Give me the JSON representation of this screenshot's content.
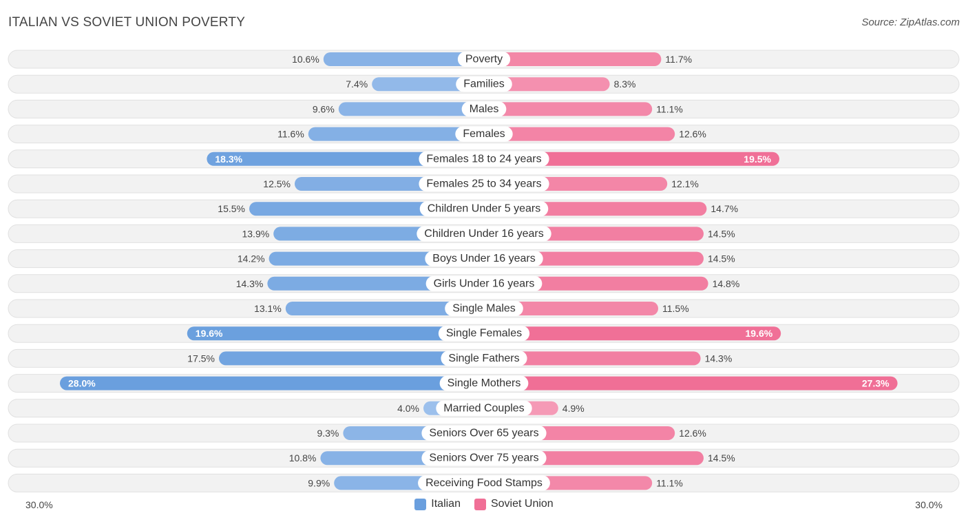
{
  "header": {
    "title": "ITALIAN VS SOVIET UNION POVERTY",
    "source": "Source: ZipAtlas.com"
  },
  "colors": {
    "italian": "#6a9fde",
    "italian_light": "#a9c8ef",
    "soviet": "#f06f96",
    "soviet_light": "#f7a8c0"
  },
  "axis": {
    "left_label": "30.0%",
    "right_label": "30.0%"
  },
  "legend": {
    "italian": "Italian",
    "soviet": "Soviet Union"
  },
  "chart_data": {
    "type": "bar",
    "orientation": "horizontal-diverging",
    "title": "ITALIAN VS SOVIET UNION POVERTY",
    "xlim": [
      0,
      30
    ],
    "unit": "%",
    "categories": [
      "Poverty",
      "Families",
      "Males",
      "Females",
      "Females 18 to 24 years",
      "Females 25 to 34 years",
      "Children Under 5 years",
      "Children Under 16 years",
      "Boys Under 16 years",
      "Girls Under 16 years",
      "Single Males",
      "Single Females",
      "Single Fathers",
      "Single Mothers",
      "Married Couples",
      "Seniors Over 65 years",
      "Seniors Over 75 years",
      "Receiving Food Stamps"
    ],
    "series": [
      {
        "name": "Italian",
        "values": [
          10.6,
          7.4,
          9.6,
          11.6,
          18.3,
          12.5,
          15.5,
          13.9,
          14.2,
          14.3,
          13.1,
          19.6,
          17.5,
          28.0,
          4.0,
          9.3,
          10.8,
          9.9
        ],
        "labels": [
          "10.6%",
          "7.4%",
          "9.6%",
          "11.6%",
          "18.3%",
          "12.5%",
          "15.5%",
          "13.9%",
          "14.2%",
          "14.3%",
          "13.1%",
          "19.6%",
          "17.5%",
          "28.0%",
          "4.0%",
          "9.3%",
          "10.8%",
          "9.9%"
        ]
      },
      {
        "name": "Soviet Union",
        "values": [
          11.7,
          8.3,
          11.1,
          12.6,
          19.5,
          12.1,
          14.7,
          14.5,
          14.5,
          14.8,
          11.5,
          19.6,
          14.3,
          27.3,
          4.9,
          12.6,
          14.5,
          11.1
        ],
        "labels": [
          "11.7%",
          "8.3%",
          "11.1%",
          "12.6%",
          "19.5%",
          "12.1%",
          "14.7%",
          "14.5%",
          "14.5%",
          "14.8%",
          "11.5%",
          "19.6%",
          "14.3%",
          "27.3%",
          "4.9%",
          "12.6%",
          "14.5%",
          "11.1%"
        ]
      }
    ]
  }
}
